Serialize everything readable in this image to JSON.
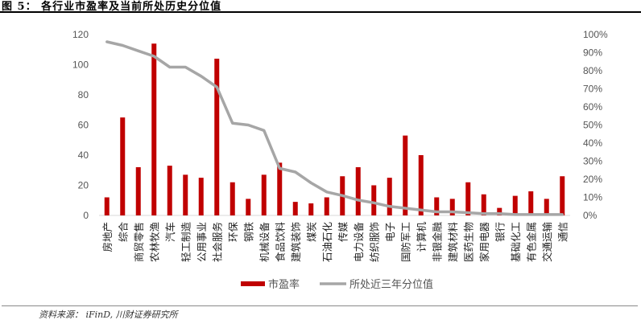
{
  "figure": {
    "title": "图 5： 各行业市盈率及当前所处历史分位值",
    "source": "资料来源： iFinD, 川财证券研究所"
  },
  "chart_data": {
    "type": "bar",
    "categories": [
      "房地产",
      "综合",
      "商贸零售",
      "农林牧渔",
      "汽车",
      "轻工制造",
      "公用事业",
      "社会服务",
      "环保",
      "钢铁",
      "机械设备",
      "食品饮料",
      "建筑装饰",
      "煤炭",
      "石油石化",
      "传媒",
      "电力设备",
      "纺织服饰",
      "电子",
      "国防军工",
      "计算机",
      "非银金融",
      "建筑材料",
      "医药生物",
      "家用电器",
      "银行",
      "基础化工",
      "有色金属",
      "交通运输",
      "通信"
    ],
    "series": [
      {
        "name": "市盈率",
        "type": "bar",
        "axis": "left",
        "color": "#c00000",
        "values": [
          12,
          65,
          32,
          114,
          33,
          27,
          25,
          104,
          22,
          11,
          27,
          35,
          9,
          8,
          12,
          26,
          32,
          20,
          25,
          53,
          40,
          12,
          11,
          22,
          14,
          5,
          13,
          16,
          11,
          26
        ]
      },
      {
        "name": "所处近三年分位值",
        "type": "line",
        "axis": "right",
        "color": "#a6a6a6",
        "values": [
          0.96,
          0.94,
          0.91,
          0.88,
          0.82,
          0.82,
          0.77,
          0.71,
          0.51,
          0.5,
          0.47,
          0.26,
          0.24,
          0.18,
          0.13,
          0.11,
          0.085,
          0.07,
          0.05,
          0.04,
          0.03,
          0.02,
          0.02,
          0.015,
          0.01,
          0.01,
          0.005,
          0.005,
          0.005,
          0.005
        ]
      }
    ],
    "y_left": {
      "ticks": [
        "0",
        "20",
        "40",
        "60",
        "80",
        "100",
        "120"
      ],
      "min": 0,
      "max": 120
    },
    "y_right": {
      "ticks": [
        "0%",
        "10%",
        "20%",
        "30%",
        "40%",
        "50%",
        "60%",
        "70%",
        "80%",
        "90%",
        "100%"
      ],
      "min": 0,
      "max": 1
    },
    "legend_position": "bottom-center",
    "grid": false
  }
}
